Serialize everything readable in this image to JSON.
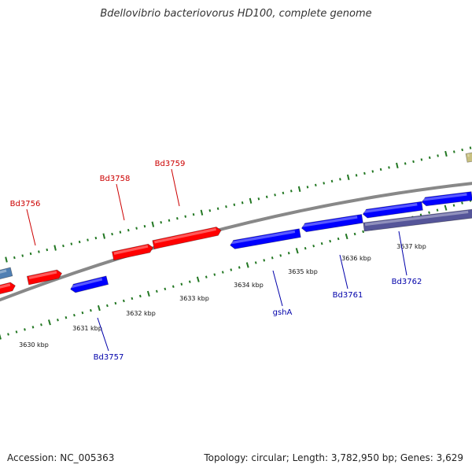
{
  "title": "Bdellovibrio bacteriovorus HD100, complete genome",
  "footer": {
    "accession": "Accession: NC_005363",
    "summary": "Topology: circular; Length: 3,782,950 bp; Genes: 3,629"
  },
  "colors": {
    "forward_gene": "#ff0000",
    "reverse_gene": "#0000ff",
    "forward_label": "#cc0000",
    "reverse_label": "#0000aa",
    "tick": "#227722",
    "backbone": "#888888",
    "gene_purple": "#555599",
    "gene_steel": "#4f7fb3",
    "gene_olive": "#c8c080"
  },
  "scale_labels": [
    "3630 kbp",
    "3631 kbp",
    "3632 kbp",
    "3633 kbp",
    "3634 kbp",
    "3635 kbp",
    "3636 kbp",
    "3637 kbp"
  ],
  "gene_labels": {
    "forward": [
      "Bd3756",
      "Bd3758",
      "Bd3759"
    ],
    "reverse": [
      "Bd3757",
      "gshA",
      "Bd3761",
      "Bd3762"
    ]
  }
}
